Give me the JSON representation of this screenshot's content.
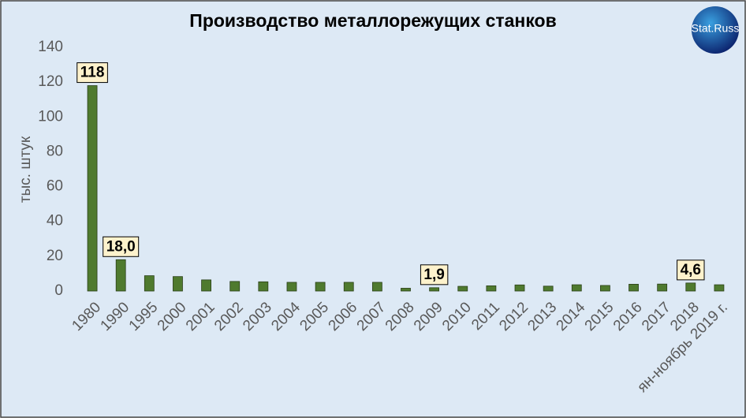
{
  "logo": "Stat.Russ",
  "chart_data": {
    "type": "bar",
    "title": "Производство металлорежущих станков",
    "y_label": "тыс. штук",
    "categories": [
      "1980",
      "1990",
      "1995",
      "2000",
      "2001",
      "2002",
      "2003",
      "2004",
      "2005",
      "2006",
      "2007",
      "2008",
      "2009",
      "2010",
      "2011",
      "2012",
      "2013",
      "2014",
      "2015",
      "2016",
      "2017",
      "2018",
      "ян-ноябрь 2019 г."
    ],
    "values": [
      118,
      18.0,
      8.8,
      8.3,
      6.4,
      5.5,
      5.3,
      5.0,
      5.0,
      5.0,
      5.0,
      1.6,
      1.9,
      2.7,
      3.0,
      3.5,
      2.8,
      3.6,
      3.2,
      3.9,
      4.0,
      4.6,
      3.6
    ],
    "value_labels": [
      "118",
      "18,0",
      null,
      null,
      null,
      null,
      null,
      null,
      null,
      null,
      null,
      null,
      "1,9",
      null,
      null,
      null,
      null,
      null,
      null,
      null,
      null,
      "4,6",
      null
    ],
    "color": "#4f7a2e",
    "ylim": [
      0,
      140
    ],
    "yticks": [
      0,
      20,
      40,
      60,
      80,
      100,
      120,
      140
    ],
    "grid": false
  }
}
